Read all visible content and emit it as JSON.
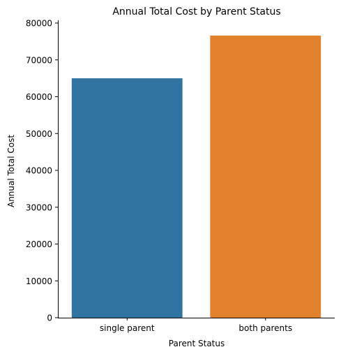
{
  "chart_data": {
    "type": "bar",
    "title": "Annual Total Cost by Parent Status",
    "xlabel": "Parent Status",
    "ylabel": "Annual Total Cost",
    "categories": [
      "single parent",
      "both parents"
    ],
    "values": [
      65000,
      76600
    ],
    "colors": [
      "#3274a1",
      "#e1812c"
    ],
    "ylim": [
      0,
      80000
    ],
    "yticks": [
      0,
      10000,
      20000,
      30000,
      40000,
      50000,
      60000,
      70000,
      80000
    ],
    "grid": false,
    "legend": "none"
  }
}
